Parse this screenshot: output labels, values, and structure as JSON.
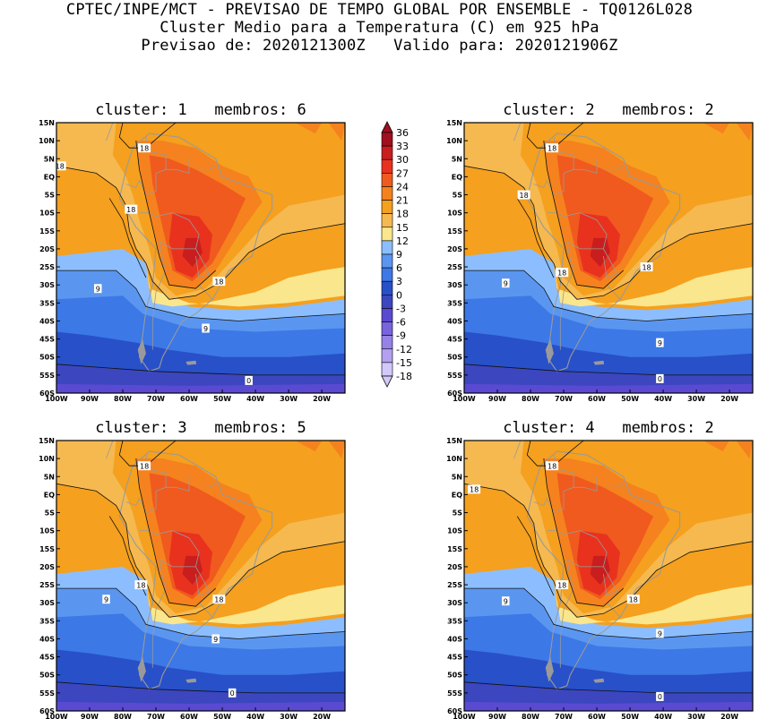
{
  "header": {
    "line1": "CPTEC/INPE/MCT - PREVISAO DE TEMPO GLOBAL POR ENSEMBLE - TQ0126L028",
    "line2": "Cluster Medio para a Temperatura (C) em 925 hPa",
    "line3": "Previsao de: 2020121300Z   Valido para: 2020121906Z"
  },
  "axes": {
    "lat_labels": [
      "15N",
      "10N",
      "5N",
      "EQ",
      "5S",
      "10S",
      "15S",
      "20S",
      "25S",
      "30S",
      "35S",
      "40S",
      "45S",
      "50S",
      "55S",
      "60S"
    ],
    "lon_labels": [
      "100W",
      "90W",
      "80W",
      "70W",
      "60W",
      "50W",
      "40W",
      "30W",
      "20W"
    ]
  },
  "colorbar": {
    "labels": [
      "36",
      "33",
      "30",
      "27",
      "24",
      "21",
      "18",
      "15",
      "12",
      "9",
      "6",
      "3",
      "0",
      "-3",
      "-6",
      "-9",
      "-12",
      "-15",
      "-18"
    ],
    "colors": [
      "#a0101e",
      "#c81e1e",
      "#e8321e",
      "#f05a1e",
      "#f5821e",
      "#f5a01e",
      "#f5b950",
      "#fae68c",
      "#8cbeff",
      "#5a96f0",
      "#3c78e6",
      "#2850c8",
      "#3c46be",
      "#5a4ad2",
      "#7864dc",
      "#9682e6",
      "#b4a0f0",
      "#d2c8fa"
    ]
  },
  "panels": [
    {
      "title": "cluster: 1   membros: 6",
      "contour_labels": [
        {
          "text": "18",
          "lon": -73.5,
          "lat": 8
        },
        {
          "text": "18",
          "lon": -99,
          "lat": 3
        },
        {
          "text": "18",
          "lon": -77.5,
          "lat": -9
        },
        {
          "text": "18",
          "lon": -51,
          "lat": -29
        },
        {
          "text": "9",
          "lon": -87.5,
          "lat": -31
        },
        {
          "text": "9",
          "lon": -55,
          "lat": -42
        },
        {
          "text": "0",
          "lon": -42,
          "lat": -56.5
        }
      ]
    },
    {
      "title": "cluster: 2   membros: 2",
      "contour_labels": [
        {
          "text": "18",
          "lon": -73.5,
          "lat": 8
        },
        {
          "text": "18",
          "lon": -82,
          "lat": -5
        },
        {
          "text": "18",
          "lon": -70.5,
          "lat": -26.5
        },
        {
          "text": "18",
          "lon": -45,
          "lat": -25
        },
        {
          "text": "9",
          "lon": -87.5,
          "lat": -29.5
        },
        {
          "text": "9",
          "lon": -41,
          "lat": -46
        },
        {
          "text": "0",
          "lon": -41,
          "lat": -56
        }
      ]
    },
    {
      "title": "cluster: 3   membros: 5",
      "contour_labels": [
        {
          "text": "18",
          "lon": -73.5,
          "lat": 8
        },
        {
          "text": "18",
          "lon": -74.5,
          "lat": -25
        },
        {
          "text": "18",
          "lon": -51,
          "lat": -29
        },
        {
          "text": "9",
          "lon": -85,
          "lat": -29
        },
        {
          "text": "9",
          "lon": -52,
          "lat": -40
        },
        {
          "text": "0",
          "lon": -47,
          "lat": -55
        }
      ]
    },
    {
      "title": "cluster: 4   membros: 2",
      "contour_labels": [
        {
          "text": "18",
          "lon": -73.5,
          "lat": 8
        },
        {
          "text": "18",
          "lon": -97,
          "lat": 1.5
        },
        {
          "text": "18",
          "lon": -70.5,
          "lat": -25
        },
        {
          "text": "18",
          "lon": -49,
          "lat": -29
        },
        {
          "text": "9",
          "lon": -87.5,
          "lat": -29.5
        },
        {
          "text": "9",
          "lon": -41,
          "lat": -38.5
        },
        {
          "text": "0",
          "lon": -41,
          "lat": -56
        }
      ]
    }
  ]
}
